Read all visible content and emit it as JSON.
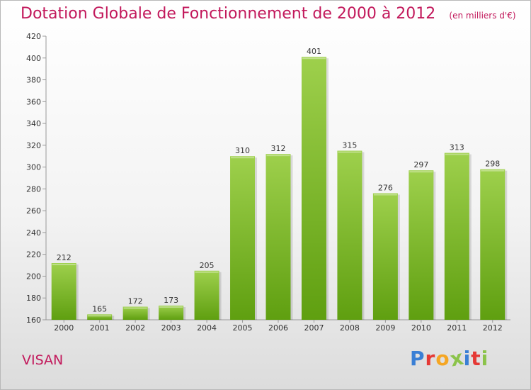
{
  "title": "Dotation Globale de Fonctionnement de 2000 à 2012",
  "subtitle": "(en milliers d'€)",
  "city": "VISAN",
  "logo_text": "Proxiti",
  "colors": {
    "title": "#c2185b",
    "bar_light": "#9ed04c",
    "bar_dark": "#5f9f10",
    "logo": [
      "#3a7fd5",
      "#e53935",
      "#f5a623",
      "#8bc34a",
      "#3a7fd5",
      "#e53935",
      "#8bc34a"
    ]
  },
  "chart_data": {
    "type": "bar",
    "title": "Dotation Globale de Fonctionnement de 2000 à 2012",
    "subtitle": "(en milliers d'€)",
    "categories": [
      "2000",
      "2001",
      "2002",
      "2003",
      "2004",
      "2005",
      "2006",
      "2007",
      "2008",
      "2009",
      "2010",
      "2011",
      "2012"
    ],
    "values": [
      212,
      165,
      172,
      173,
      205,
      310,
      312,
      401,
      315,
      276,
      297,
      313,
      298
    ],
    "ylim": [
      160,
      420
    ],
    "yticks": [
      160,
      180,
      200,
      220,
      240,
      260,
      280,
      300,
      320,
      340,
      360,
      380,
      400,
      420
    ],
    "grid": false,
    "data_labels": true
  }
}
